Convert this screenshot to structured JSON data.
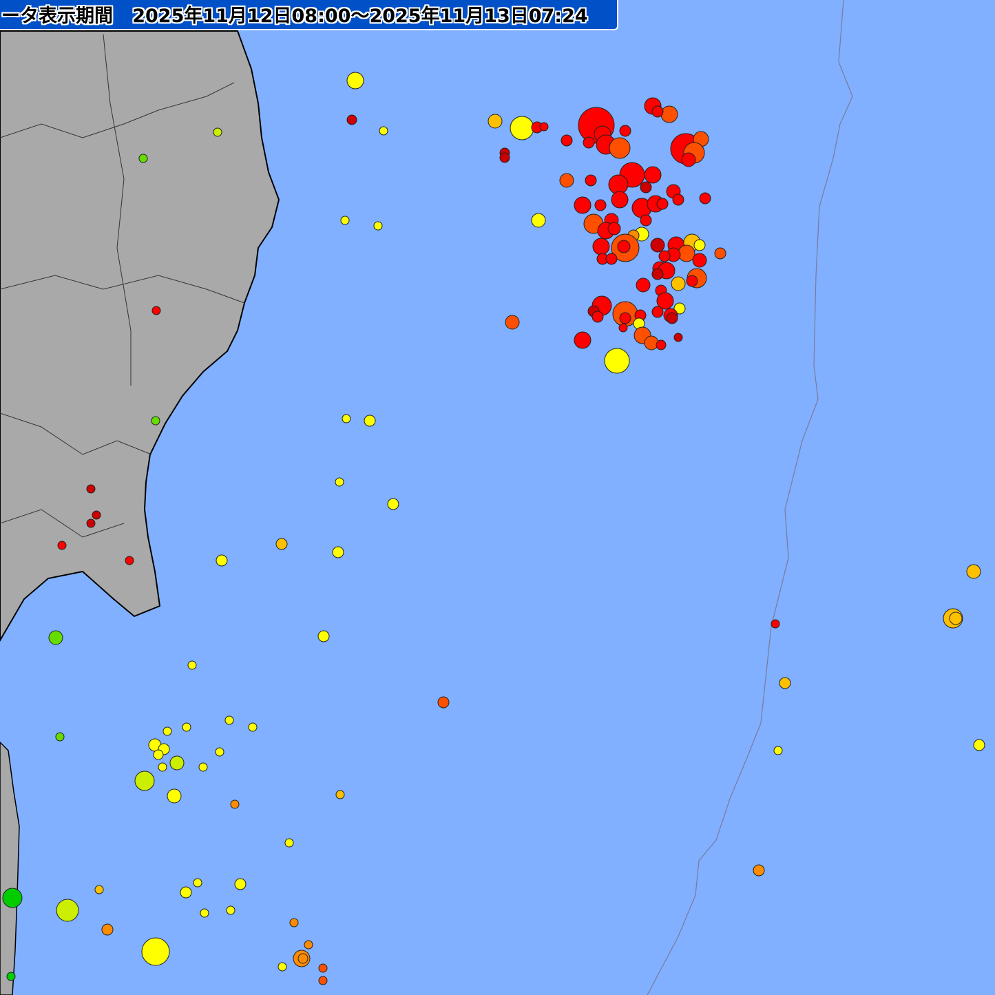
{
  "header": {
    "label": "ータ表示期間",
    "period": "2025年11月12日08:00〜2025年11月13日07:24"
  },
  "colors": {
    "sea": "#80b0ff",
    "land": "#a8a8a8",
    "trench": "#7a7a9a",
    "header_bg": "#0050c8",
    "marker_colors": [
      "#00cc00",
      "#66dd00",
      "#ccee00",
      "#ffff00",
      "#ffc000",
      "#ff8c00",
      "#ff5000",
      "#ff0000",
      "#cc0000"
    ]
  }
}
